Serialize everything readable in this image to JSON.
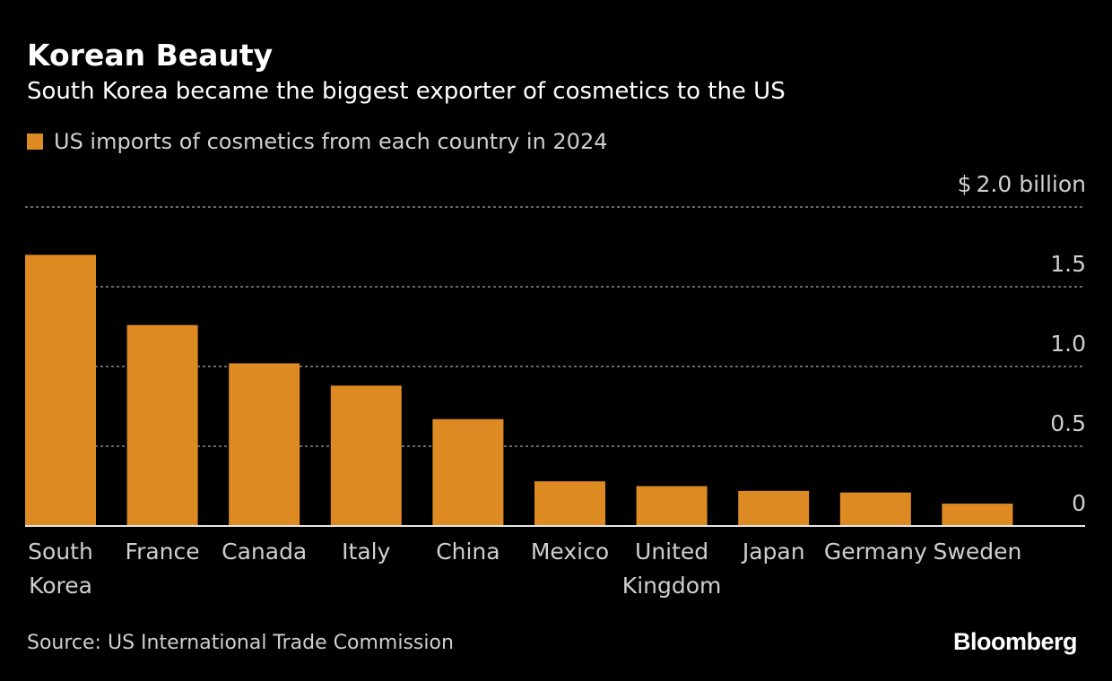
{
  "header": {
    "title": "Korean Beauty",
    "subtitle": "South Korea became the biggest exporter of cosmetics to the US"
  },
  "legend": {
    "label": "US imports of cosmetics from each country in 2024"
  },
  "footer": {
    "source": "Source: US International Trade Commission",
    "brand": "Bloomberg"
  },
  "colors": {
    "bar": "#de8a22",
    "background": "#000000",
    "text": "#ffffff",
    "muted_text": "#cfcfcf",
    "grid": "#8a8a8a"
  },
  "chart_data": {
    "type": "bar",
    "title": "Korean Beauty",
    "subtitle": "South Korea became the biggest exporter of cosmetics to the US",
    "categories": [
      "South Korea",
      "France",
      "Canada",
      "Italy",
      "China",
      "Mexico",
      "United Kingdom",
      "Japan",
      "Germany",
      "Sweden"
    ],
    "category_labels": [
      [
        "South",
        "Korea"
      ],
      [
        "France"
      ],
      [
        "Canada"
      ],
      [
        "Italy"
      ],
      [
        "China"
      ],
      [
        "Mexico"
      ],
      [
        "United",
        "Kingdom"
      ],
      [
        "Japan"
      ],
      [
        "Germany"
      ],
      [
        "Sweden"
      ]
    ],
    "series": [
      {
        "name": "US imports of cosmetics from each country in 2024",
        "values": [
          1.7,
          1.26,
          1.02,
          0.88,
          0.67,
          0.28,
          0.25,
          0.22,
          0.21,
          0.14
        ]
      }
    ],
    "ylim": [
      0,
      2.0
    ],
    "y_ticks": [
      0,
      0.5,
      1.0,
      1.5,
      2.0
    ],
    "y_tick_labels": [
      "0",
      "0.5",
      "1.0",
      "1.5",
      "$ 2.0 billion"
    ],
    "y_axis_side": "right",
    "grid": true,
    "legend_position": "top-left"
  }
}
